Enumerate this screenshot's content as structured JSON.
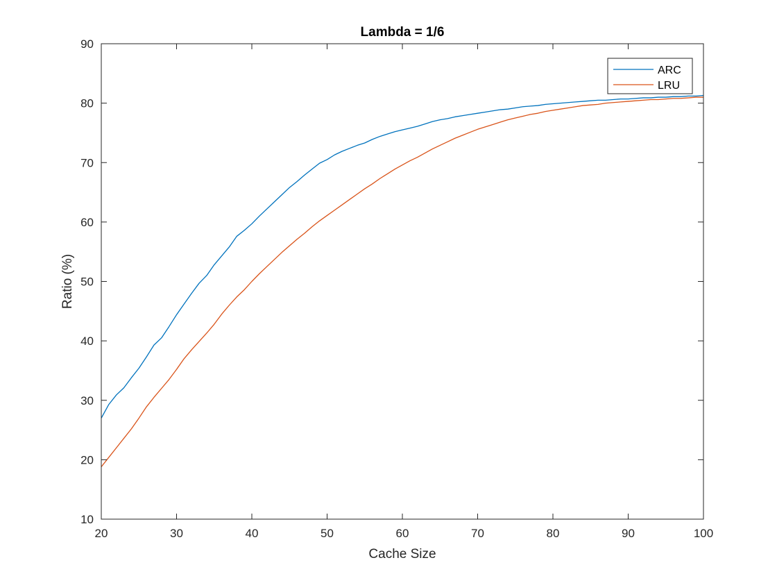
{
  "chart_data": {
    "type": "line",
    "title": "Lambda = 1/6",
    "xlabel": "Cache Size",
    "ylabel": "Ratio (%)",
    "xlim": [
      20,
      100
    ],
    "ylim": [
      10,
      90
    ],
    "xticks": [
      20,
      30,
      40,
      50,
      60,
      70,
      80,
      90,
      100
    ],
    "yticks": [
      10,
      20,
      30,
      40,
      50,
      60,
      70,
      80,
      90
    ],
    "grid": false,
    "legend_position": "top-right",
    "x": [
      20,
      21,
      22,
      23,
      24,
      25,
      26,
      27,
      28,
      29,
      30,
      31,
      32,
      33,
      34,
      35,
      36,
      37,
      38,
      39,
      40,
      41,
      42,
      43,
      44,
      45,
      46,
      47,
      48,
      49,
      50,
      51,
      52,
      53,
      54,
      55,
      56,
      57,
      58,
      59,
      60,
      61,
      62,
      63,
      64,
      65,
      66,
      67,
      68,
      69,
      70,
      71,
      72,
      73,
      74,
      75,
      76,
      77,
      78,
      79,
      80,
      81,
      82,
      83,
      84,
      85,
      86,
      87,
      88,
      89,
      90,
      91,
      92,
      93,
      94,
      95,
      96,
      97,
      98,
      99,
      100
    ],
    "series": [
      {
        "name": "ARC",
        "color": "#0072BD",
        "values": [
          27.0,
          29.3,
          30.9,
          32.1,
          33.8,
          35.4,
          37.3,
          39.3,
          40.5,
          42.4,
          44.4,
          46.2,
          48.0,
          49.7,
          51.0,
          52.8,
          54.3,
          55.8,
          57.6,
          58.6,
          59.7,
          61.0,
          62.2,
          63.4,
          64.6,
          65.8,
          66.8,
          67.9,
          68.9,
          69.9,
          70.5,
          71.3,
          71.9,
          72.4,
          72.9,
          73.3,
          73.9,
          74.4,
          74.8,
          75.2,
          75.5,
          75.8,
          76.1,
          76.5,
          76.9,
          77.2,
          77.4,
          77.7,
          77.9,
          78.1,
          78.3,
          78.5,
          78.7,
          78.9,
          79.0,
          79.2,
          79.4,
          79.5,
          79.6,
          79.8,
          79.9,
          80.0,
          80.1,
          80.2,
          80.3,
          80.4,
          80.5,
          80.5,
          80.6,
          80.7,
          80.7,
          80.8,
          80.9,
          80.9,
          81.0,
          81.0,
          81.1,
          81.1,
          81.2,
          81.2,
          81.3
        ]
      },
      {
        "name": "LRU",
        "color": "#D95319",
        "values": [
          18.8,
          20.4,
          22.0,
          23.6,
          25.2,
          27.0,
          28.9,
          30.5,
          32.0,
          33.5,
          35.2,
          37.0,
          38.5,
          39.9,
          41.3,
          42.8,
          44.5,
          46.0,
          47.4,
          48.6,
          50.0,
          51.3,
          52.5,
          53.7,
          54.9,
          56.0,
          57.1,
          58.1,
          59.2,
          60.2,
          61.1,
          62.0,
          62.9,
          63.8,
          64.7,
          65.6,
          66.4,
          67.3,
          68.1,
          68.9,
          69.6,
          70.3,
          70.9,
          71.6,
          72.3,
          72.9,
          73.5,
          74.1,
          74.6,
          75.1,
          75.6,
          76.0,
          76.4,
          76.8,
          77.2,
          77.5,
          77.8,
          78.1,
          78.3,
          78.6,
          78.8,
          79.0,
          79.2,
          79.4,
          79.6,
          79.7,
          79.8,
          80.0,
          80.1,
          80.2,
          80.3,
          80.4,
          80.5,
          80.6,
          80.6,
          80.7,
          80.8,
          80.8,
          80.9,
          81.0,
          81.0
        ]
      }
    ]
  }
}
